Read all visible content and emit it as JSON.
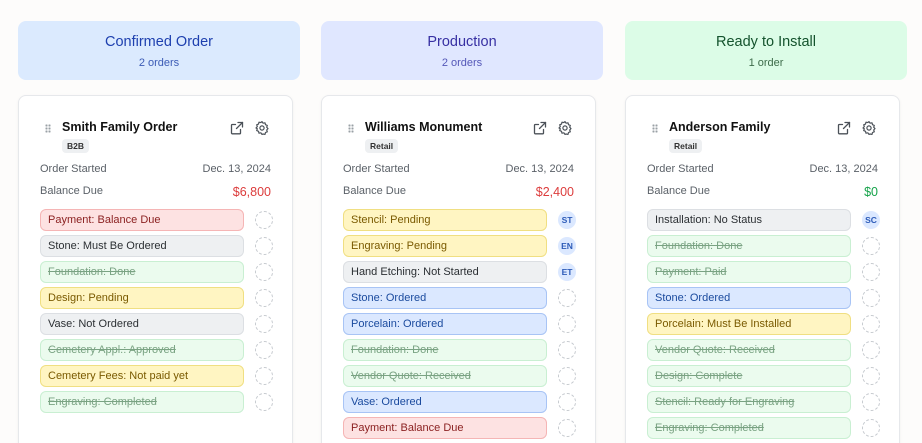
{
  "colors": {
    "header_blue": "#dbeafe",
    "header_indigo": "#e0e7ff",
    "header_green": "#dcfce7",
    "balance_red": "#dc3c3c",
    "balance_green": "#16a34a"
  },
  "columns": [
    {
      "title": "Confirmed Order",
      "count": "2 orders",
      "header_color": "#dbeafe",
      "title_color": "#1e40af",
      "count_color": "#3b5bb5",
      "card": {
        "title": "Smith Family Order",
        "badge": "B2B",
        "order_started_label": "Order Started",
        "order_started_value": "Dec. 13, 2024",
        "balance_label": "Balance Due",
        "balance_value": "$6,800",
        "balance_status": "red",
        "tasks": [
          {
            "label": "Payment: Balance Due",
            "status": "red",
            "assignee": ""
          },
          {
            "label": "Stone: Must Be Ordered",
            "status": "gray",
            "assignee": ""
          },
          {
            "label": "Foundation: Done",
            "status": "green",
            "assignee": ""
          },
          {
            "label": "Design: Pending",
            "status": "yellow",
            "assignee": ""
          },
          {
            "label": "Vase: Not Ordered",
            "status": "gray",
            "assignee": ""
          },
          {
            "label": "Cemetery Appl.: Approved",
            "status": "green",
            "assignee": ""
          },
          {
            "label": "Cemetery Fees: Not paid yet",
            "status": "yellow",
            "assignee": ""
          },
          {
            "label": "Engraving: Completed",
            "status": "green",
            "assignee": ""
          }
        ]
      }
    },
    {
      "title": "Production",
      "count": "2 orders",
      "header_color": "#e0e7ff",
      "title_color": "#3730a3",
      "count_color": "#5457b8",
      "card": {
        "title": "Williams Monument",
        "badge": "Retail",
        "order_started_label": "Order Started",
        "order_started_value": "Dec. 13, 2024",
        "balance_label": "Balance Due",
        "balance_value": "$2,400",
        "balance_status": "red",
        "tasks": [
          {
            "label": "Stencil: Pending",
            "status": "yellow",
            "assignee": "ST"
          },
          {
            "label": "Engraving: Pending",
            "status": "yellow",
            "assignee": "EN"
          },
          {
            "label": "Hand Etching: Not Started",
            "status": "gray",
            "assignee": "ET"
          },
          {
            "label": "Stone: Ordered",
            "status": "blue",
            "assignee": ""
          },
          {
            "label": "Porcelain: Ordered",
            "status": "blue",
            "assignee": ""
          },
          {
            "label": "Foundation: Done",
            "status": "green",
            "assignee": ""
          },
          {
            "label": "Vendor Quote: Received",
            "status": "green",
            "assignee": ""
          },
          {
            "label": "Vase: Ordered",
            "status": "blue",
            "assignee": ""
          },
          {
            "label": "Payment: Balance Due",
            "status": "red",
            "assignee": ""
          }
        ]
      }
    },
    {
      "title": "Ready to Install",
      "count": "1 order",
      "header_color": "#dcfce7",
      "title_color": "#14532d",
      "count_color": "#3d6b4a",
      "card": {
        "title": "Anderson Family",
        "badge": "Retail",
        "order_started_label": "Order Started",
        "order_started_value": "Dec. 13, 2024",
        "balance_label": "Balance Due",
        "balance_value": "$0",
        "balance_status": "green",
        "tasks": [
          {
            "label": "Installation: No Status",
            "status": "gray",
            "assignee": "SC"
          },
          {
            "label": "Foundation: Done",
            "status": "green",
            "assignee": ""
          },
          {
            "label": "Payment: Paid",
            "status": "green",
            "assignee": ""
          },
          {
            "label": "Stone: Ordered",
            "status": "blue",
            "assignee": ""
          },
          {
            "label": "Porcelain: Must Be Installed",
            "status": "yellow",
            "assignee": ""
          },
          {
            "label": "Vendor Quote: Received",
            "status": "green",
            "assignee": ""
          },
          {
            "label": "Design: Complete",
            "status": "green",
            "assignee": ""
          },
          {
            "label": "Stencil: Ready for Engraving",
            "status": "green",
            "assignee": ""
          },
          {
            "label": "Engraving: Completed",
            "status": "green",
            "assignee": ""
          }
        ]
      }
    }
  ]
}
